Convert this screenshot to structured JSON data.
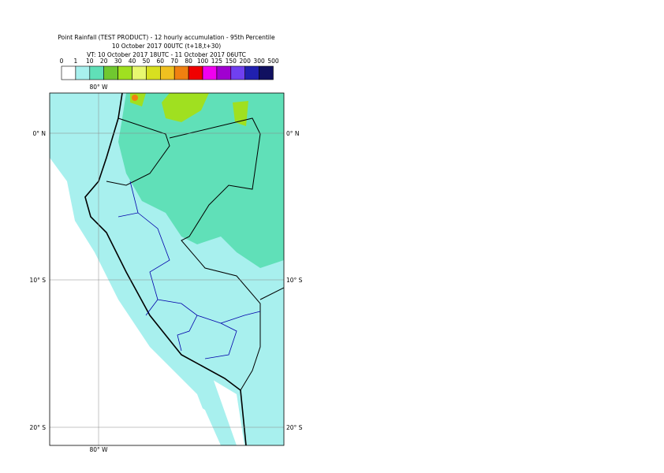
{
  "header": {
    "title": "Point Rainfall (TEST PRODUCT) - 12 hourly accumulation - 95th Percentile",
    "base_time": "10 October 2017 00UTC (t+18,t+30)",
    "valid_time": "VT: 10 October 2017 18UTC - 11 October 2017 06UTC"
  },
  "legend": {
    "labels": [
      "0",
      "1",
      "10",
      "20",
      "30",
      "40",
      "50",
      "60",
      "70",
      "80",
      "100",
      "125",
      "150",
      "200",
      "300",
      "500"
    ],
    "colors": [
      "#ffffff",
      "#a8f0ee",
      "#60e0b8",
      "#70c830",
      "#a0e020",
      "#e8f870",
      "#d8e020",
      "#f0c020",
      "#f08010",
      "#f00000",
      "#f000f0",
      "#a000d0",
      "#7040f0",
      "#2020b0",
      "#101060"
    ]
  },
  "map": {
    "lon_label_top": "80° W",
    "lon_label_bottom": "80° W",
    "lat_labels": [
      "0° N",
      "10° S",
      "20° S"
    ]
  }
}
